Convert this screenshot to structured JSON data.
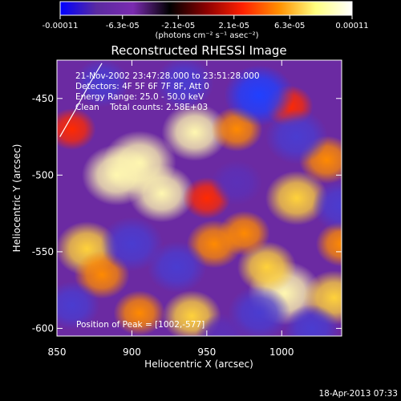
{
  "chart_data": {
    "type": "heatmap",
    "title": "Reconstructed RHESSI Image",
    "xlabel": "Heliocentric X (arcsec)",
    "ylabel": "Heliocentric Y (arcsec)",
    "xlim": [
      850,
      1040
    ],
    "ylim": [
      -605,
      -425
    ],
    "x_ticks": [
      850,
      900,
      950,
      1000
    ],
    "x_tick_labels": [
      "850",
      "900",
      "950",
      "1000"
    ],
    "y_ticks": [
      -450,
      -500,
      -550,
      -600
    ],
    "y_tick_labels": [
      "-450",
      "-500",
      "-550",
      "-600"
    ],
    "colorbar": {
      "range": [
        -0.00011,
        0.00011
      ],
      "tick_labels": [
        "-0.00011",
        "-6.3e-05",
        "-2.1e-05",
        "2.1e-05",
        "6.3e-05",
        "0.00011"
      ],
      "unit_label": "(photons cm⁻² s⁻¹ asec⁻²)",
      "colors": [
        "#0000ff",
        "#5a2aa0",
        "#7a2bb0",
        "#000000",
        "#8b0000",
        "#ff2000",
        "#ff9000",
        "#ffff80",
        "#ffffff"
      ]
    },
    "annotations": [
      "21-Nov-2002 23:47:28.000 to 23:51:28.000",
      "Detectors: 4F 5F 6F 7F 8F, Att 0",
      "Energy Range: 25.0 - 50.0 keV",
      "Clean    Total counts: 2.58E+03"
    ],
    "peak_label": "Position of Peak = [1002,-577]",
    "peak": {
      "x": 1002,
      "y": -577
    },
    "blobs": [
      {
        "x": 905,
        "y": -492,
        "v": 0.00011
      },
      {
        "x": 890,
        "y": -500,
        "v": 0.0001
      },
      {
        "x": 920,
        "y": -512,
        "v": 9e-05
      },
      {
        "x": 942,
        "y": -472,
        "v": 9e-05
      },
      {
        "x": 1002,
        "y": -577,
        "v": 0.00011
      },
      {
        "x": 990,
        "y": -560,
        "v": 7e-05
      },
      {
        "x": 1035,
        "y": -580,
        "v": 8e-05
      },
      {
        "x": 1010,
        "y": -515,
        "v": 8e-05
      },
      {
        "x": 1030,
        "y": -490,
        "v": 6e-05
      },
      {
        "x": 870,
        "y": -548,
        "v": 8e-05
      },
      {
        "x": 880,
        "y": -565,
        "v": 6e-05
      },
      {
        "x": 955,
        "y": -545,
        "v": 6e-05
      },
      {
        "x": 975,
        "y": -538,
        "v": 5e-05
      },
      {
        "x": 940,
        "y": -592,
        "v": 7e-05
      },
      {
        "x": 905,
        "y": -590,
        "v": 5e-05
      },
      {
        "x": 970,
        "y": -470,
        "v": 5e-05
      },
      {
        "x": 1005,
        "y": -455,
        "v": 4e-05
      },
      {
        "x": 860,
        "y": -470,
        "v": 4e-05
      },
      {
        "x": 950,
        "y": -515,
        "v": 4e-05
      },
      {
        "x": 1040,
        "y": -545,
        "v": 5e-05
      },
      {
        "x": 985,
        "y": -448,
        "v": -0.0001
      },
      {
        "x": 1010,
        "y": -475,
        "v": -8e-05
      },
      {
        "x": 935,
        "y": -440,
        "v": -7e-05
      },
      {
        "x": 900,
        "y": -545,
        "v": -8e-05
      },
      {
        "x": 930,
        "y": -560,
        "v": -7e-05
      },
      {
        "x": 985,
        "y": -590,
        "v": -8e-05
      },
      {
        "x": 1040,
        "y": -520,
        "v": -7e-05
      },
      {
        "x": 860,
        "y": -585,
        "v": -6e-05
      },
      {
        "x": 970,
        "y": -505,
        "v": -5e-05
      },
      {
        "x": 1020,
        "y": -600,
        "v": -6e-05
      },
      {
        "x": 960,
        "y": -605,
        "v": -5e-05
      },
      {
        "x": 880,
        "y": -440,
        "v": -6e-05
      }
    ],
    "limb_curve": [
      {
        "x": 852,
        "y": -475
      },
      {
        "x": 862,
        "y": -458
      },
      {
        "x": 872,
        "y": -440
      },
      {
        "x": 880,
        "y": -427
      }
    ],
    "grid": false,
    "legend": "none"
  },
  "footer": {
    "timestamp": "18-Apr-2013 07:33"
  }
}
